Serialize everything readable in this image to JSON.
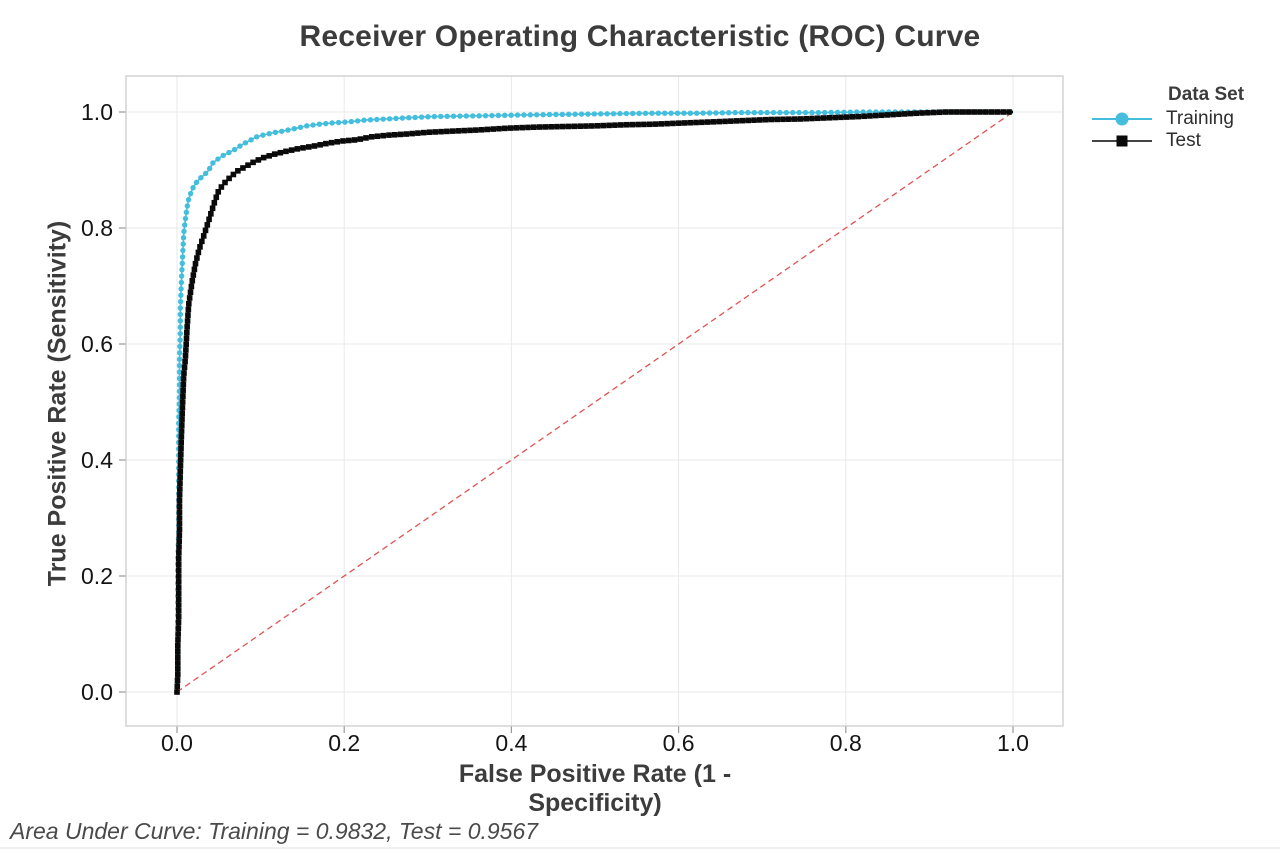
{
  "chart_data": {
    "type": "line",
    "title": "Receiver Operating Characteristic (ROC) Curve",
    "xlabel": "False Positive Rate (1 - Specificity)",
    "ylabel": "True Positive Rate (Sensitivity)",
    "xlim": [
      0,
      1
    ],
    "ylim": [
      0,
      1
    ],
    "x_ticks": [
      "0.0",
      "0.2",
      "0.4",
      "0.6",
      "0.8",
      "1.0"
    ],
    "y_ticks": [
      "0.0",
      "0.2",
      "0.4",
      "0.6",
      "0.8",
      "1.0"
    ],
    "grid": true,
    "legend_title": "Data Set",
    "legend_position": "right",
    "annotation": "Area Under Curve: Training = 0.9832, Test = 0.9567",
    "reference_line": {
      "name": "chance-diagonal",
      "style": "dashed",
      "color": "#e05252",
      "from": [
        0,
        0
      ],
      "to": [
        1,
        1
      ]
    },
    "colors": {
      "gridline": "#e9e9e9",
      "plot_border": "#c9c9c9",
      "tick_mark": "#9a9a9a",
      "tick_text": "#141414",
      "title_text": "#3c3c3c"
    },
    "series": [
      {
        "name": "Training",
        "color": "#44bedc",
        "marker": "circle",
        "auc": 0.9832,
        "points": [
          [
            0.0,
            0.0
          ],
          [
            0.001,
            0.04
          ],
          [
            0.001,
            0.1
          ],
          [
            0.001,
            0.16
          ],
          [
            0.001,
            0.22
          ],
          [
            0.002,
            0.28
          ],
          [
            0.002,
            0.34
          ],
          [
            0.002,
            0.4
          ],
          [
            0.002,
            0.46
          ],
          [
            0.003,
            0.52
          ],
          [
            0.003,
            0.57
          ],
          [
            0.004,
            0.62
          ],
          [
            0.004,
            0.66
          ],
          [
            0.005,
            0.7
          ],
          [
            0.006,
            0.73
          ],
          [
            0.007,
            0.76
          ],
          [
            0.008,
            0.79
          ],
          [
            0.01,
            0.815
          ],
          [
            0.012,
            0.835
          ],
          [
            0.014,
            0.85
          ],
          [
            0.017,
            0.862
          ],
          [
            0.02,
            0.872
          ],
          [
            0.024,
            0.88
          ],
          [
            0.028,
            0.886
          ],
          [
            0.033,
            0.892
          ],
          [
            0.038,
            0.9
          ],
          [
            0.043,
            0.912
          ],
          [
            0.048,
            0.918
          ],
          [
            0.055,
            0.925
          ],
          [
            0.062,
            0.93
          ],
          [
            0.07,
            0.936
          ],
          [
            0.078,
            0.944
          ],
          [
            0.086,
            0.95
          ],
          [
            0.095,
            0.957
          ],
          [
            0.105,
            0.961
          ],
          [
            0.118,
            0.965
          ],
          [
            0.13,
            0.968
          ],
          [
            0.143,
            0.972
          ],
          [
            0.155,
            0.976
          ],
          [
            0.17,
            0.979
          ],
          [
            0.185,
            0.981
          ],
          [
            0.205,
            0.983
          ],
          [
            0.225,
            0.986
          ],
          [
            0.25,
            0.988
          ],
          [
            0.275,
            0.99
          ],
          [
            0.305,
            0.992
          ],
          [
            0.34,
            0.993
          ],
          [
            0.38,
            0.994
          ],
          [
            0.42,
            0.995
          ],
          [
            0.47,
            0.996
          ],
          [
            0.52,
            0.997
          ],
          [
            0.57,
            0.998
          ],
          [
            0.62,
            0.998
          ],
          [
            0.67,
            0.999
          ],
          [
            0.72,
            0.999
          ],
          [
            0.77,
            0.999
          ],
          [
            0.82,
            1.0
          ],
          [
            0.87,
            1.0
          ],
          [
            0.92,
            1.0
          ],
          [
            1.0,
            1.0
          ]
        ]
      },
      {
        "name": "Test",
        "color": "#0a0a0a",
        "marker": "square",
        "auc": 0.9567,
        "points": [
          [
            0.0,
            0.0
          ],
          [
            0.001,
            0.03
          ],
          [
            0.001,
            0.08
          ],
          [
            0.002,
            0.13
          ],
          [
            0.002,
            0.18
          ],
          [
            0.002,
            0.23
          ],
          [
            0.003,
            0.28
          ],
          [
            0.003,
            0.33
          ],
          [
            0.004,
            0.38
          ],
          [
            0.005,
            0.43
          ],
          [
            0.006,
            0.47
          ],
          [
            0.007,
            0.51
          ],
          [
            0.008,
            0.545
          ],
          [
            0.01,
            0.575
          ],
          [
            0.011,
            0.6
          ],
          [
            0.012,
            0.625
          ],
          [
            0.013,
            0.648
          ],
          [
            0.014,
            0.668
          ],
          [
            0.016,
            0.688
          ],
          [
            0.018,
            0.706
          ],
          [
            0.02,
            0.722
          ],
          [
            0.022,
            0.738
          ],
          [
            0.025,
            0.755
          ],
          [
            0.028,
            0.77
          ],
          [
            0.031,
            0.782
          ],
          [
            0.035,
            0.8
          ],
          [
            0.04,
            0.822
          ],
          [
            0.045,
            0.845
          ],
          [
            0.05,
            0.865
          ],
          [
            0.057,
            0.878
          ],
          [
            0.064,
            0.888
          ],
          [
            0.072,
            0.898
          ],
          [
            0.082,
            0.906
          ],
          [
            0.092,
            0.914
          ],
          [
            0.103,
            0.921
          ],
          [
            0.116,
            0.927
          ],
          [
            0.13,
            0.932
          ],
          [
            0.146,
            0.937
          ],
          [
            0.163,
            0.941
          ],
          [
            0.18,
            0.946
          ],
          [
            0.198,
            0.95
          ],
          [
            0.215,
            0.952
          ],
          [
            0.232,
            0.957
          ],
          [
            0.252,
            0.96
          ],
          [
            0.275,
            0.962
          ],
          [
            0.3,
            0.965
          ],
          [
            0.33,
            0.967
          ],
          [
            0.36,
            0.969
          ],
          [
            0.395,
            0.972
          ],
          [
            0.43,
            0.974
          ],
          [
            0.465,
            0.975
          ],
          [
            0.5,
            0.976
          ],
          [
            0.535,
            0.978
          ],
          [
            0.57,
            0.979
          ],
          [
            0.605,
            0.981
          ],
          [
            0.64,
            0.983
          ],
          [
            0.675,
            0.985
          ],
          [
            0.71,
            0.987
          ],
          [
            0.745,
            0.988
          ],
          [
            0.78,
            0.99
          ],
          [
            0.815,
            0.992
          ],
          [
            0.85,
            0.995
          ],
          [
            0.885,
            0.998
          ],
          [
            0.92,
            1.0
          ],
          [
            0.96,
            1.0
          ],
          [
            1.0,
            1.0
          ]
        ]
      }
    ]
  }
}
